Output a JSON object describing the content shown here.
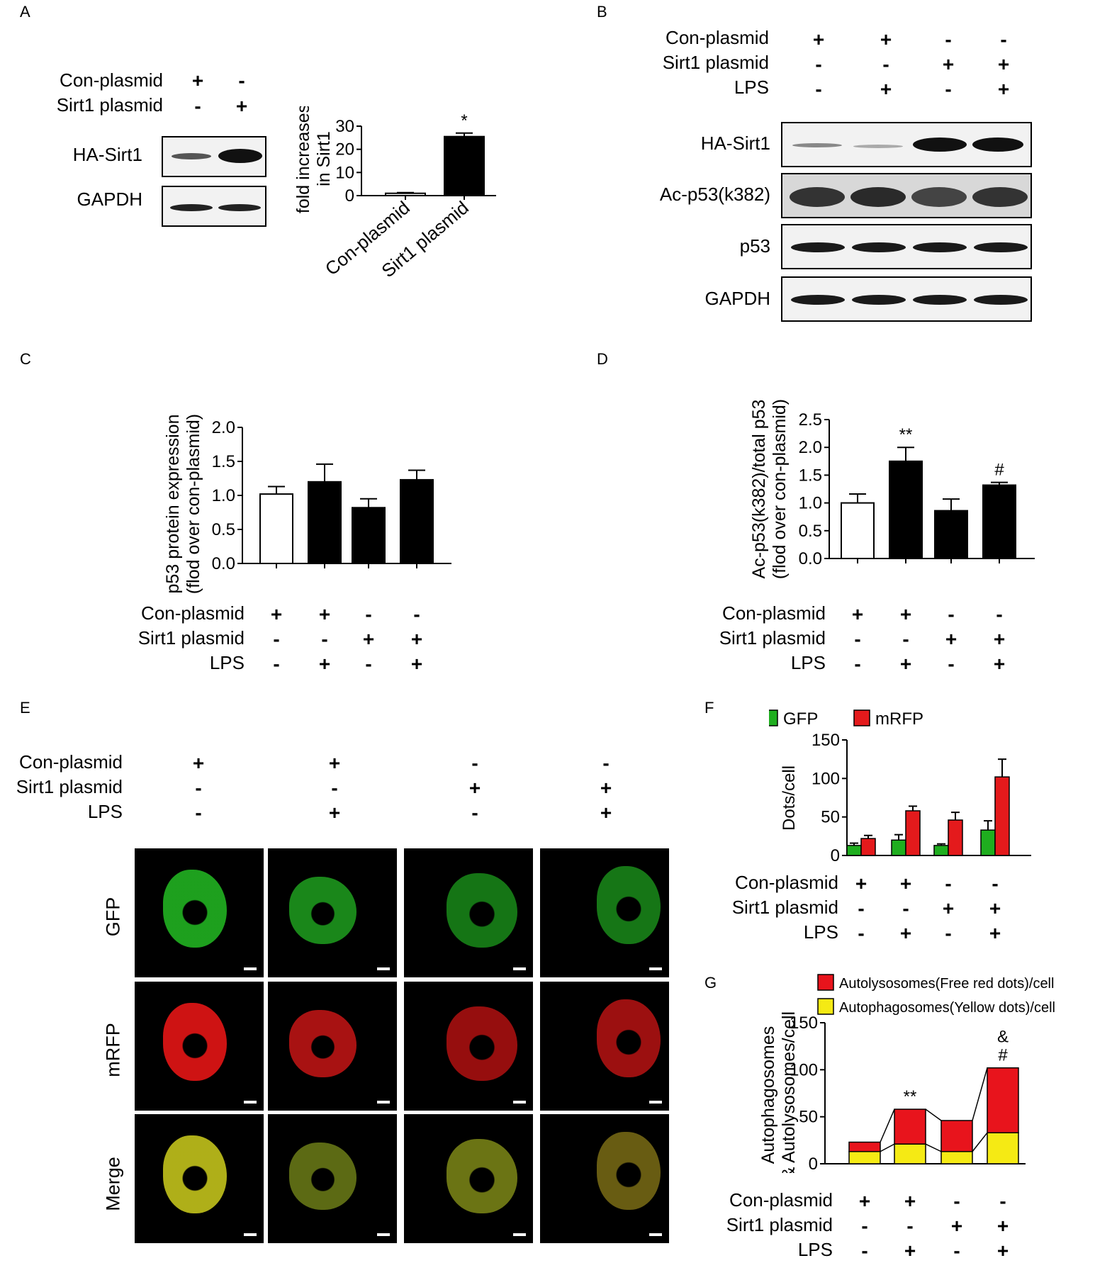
{
  "panel_letters": [
    "A",
    "B",
    "C",
    "D",
    "E",
    "F",
    "G"
  ],
  "condition_labels": {
    "con": "Con-plasmid",
    "sirt": "Sirt1 plasmid",
    "lps": "LPS"
  },
  "conditions4": {
    "con": [
      "+",
      "+",
      "-",
      "-"
    ],
    "sirt": [
      "-",
      "-",
      "+",
      "+"
    ],
    "lps": [
      "-",
      "+",
      "-",
      "+"
    ]
  },
  "conditions2": {
    "con": [
      "+",
      "-"
    ],
    "sirt": [
      "-",
      "+"
    ]
  },
  "blot_labels_A": [
    "HA-Sirt1",
    "GAPDH"
  ],
  "blot_labels_B": [
    "HA-Sirt1",
    "Ac-p53(k382)",
    "p53",
    "GAPDH"
  ],
  "image_row_labels": [
    "GFP",
    "mRFP",
    "Merge"
  ],
  "colors": {
    "black": "#000000",
    "white": "#ffffff",
    "gfp": "#1fae1f",
    "mrfp": "#e41a1c",
    "yellow": "#f5ea14",
    "red": "#e8141c"
  },
  "chart_data": [
    {
      "panel": "A",
      "type": "bar",
      "categories": [
        "Con-plasmid",
        "Sirt1 plasmid"
      ],
      "values": [
        1,
        25.5
      ],
      "errors": [
        0.3,
        1.5
      ],
      "bar_fill": [
        "white",
        "black"
      ],
      "ylabel": [
        "fold increases",
        "in Sirt1"
      ],
      "ylim": [
        0,
        30
      ],
      "yticks": [
        0,
        10,
        20,
        30
      ],
      "annotations": [
        "",
        "*"
      ]
    },
    {
      "panel": "C",
      "type": "bar",
      "values": [
        1.02,
        1.2,
        0.82,
        1.23
      ],
      "errors": [
        0.11,
        0.26,
        0.13,
        0.14
      ],
      "bar_fill": [
        "white",
        "black",
        "black",
        "black"
      ],
      "ylabel": [
        "p53 protein expression",
        "(flod over con-plasmid)"
      ],
      "ylim": [
        0,
        2.0
      ],
      "yticks": [
        "0.0",
        "0.5",
        "1.0",
        "1.5",
        "2.0"
      ]
    },
    {
      "panel": "D",
      "type": "bar",
      "values": [
        1.0,
        1.75,
        0.86,
        1.32
      ],
      "errors": [
        0.16,
        0.25,
        0.21,
        0.05
      ],
      "bar_fill": [
        "white",
        "black",
        "black",
        "black"
      ],
      "ylabel": [
        "Ac-p53(k382)/total p53",
        "(flod over con-plasmid)"
      ],
      "ylim": [
        0,
        2.5
      ],
      "yticks": [
        "0.0",
        "0.5",
        "1.0",
        "1.5",
        "2.0",
        "2.5"
      ],
      "annotations": [
        "",
        "**",
        "",
        "#"
      ]
    },
    {
      "panel": "F",
      "type": "bar",
      "series": [
        {
          "name": "GFP",
          "values": [
            13,
            20,
            13,
            33
          ],
          "errors": [
            3,
            7,
            2,
            12
          ]
        },
        {
          "name": "mRFP",
          "values": [
            22,
            58,
            46,
            102
          ],
          "errors": [
            4,
            6,
            10,
            23
          ]
        }
      ],
      "ylabel": "Dots/cell",
      "ylim": [
        0,
        150
      ],
      "yticks": [
        0,
        50,
        100,
        150
      ],
      "legend": "top"
    },
    {
      "panel": "G",
      "type": "bar",
      "stacked": true,
      "series": [
        {
          "name": "Autophagosomes(Yellow dots)/cell",
          "values": [
            13,
            21,
            13,
            33
          ]
        },
        {
          "name": "Autolysosomes(Free red dots)/cell",
          "values": [
            10,
            37,
            33,
            69
          ]
        }
      ],
      "ylabel": [
        "Autophagosomes",
        "& Autolysosomes/cell"
      ],
      "ylim": [
        0,
        150
      ],
      "yticks": [
        0,
        50,
        100,
        150
      ],
      "annotations": [
        "",
        "**",
        "",
        "&\n#"
      ],
      "legend": "top"
    }
  ]
}
